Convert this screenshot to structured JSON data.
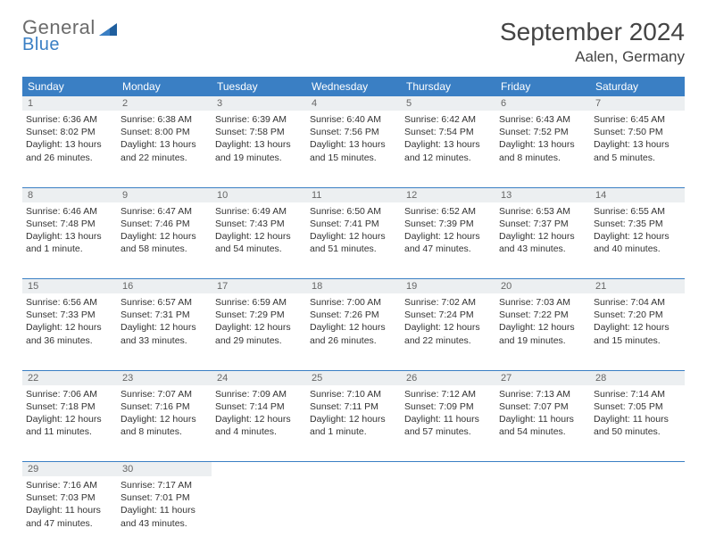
{
  "logo": {
    "general": "General",
    "blue": "Blue"
  },
  "title": "September 2024",
  "location": "Aalen, Germany",
  "header_bg": "#3a7fc4",
  "daynum_bg": "#eceff1",
  "weekdays": [
    "Sunday",
    "Monday",
    "Tuesday",
    "Wednesday",
    "Thursday",
    "Friday",
    "Saturday"
  ],
  "weeks": [
    [
      {
        "n": "1",
        "sr": "6:36 AM",
        "ss": "8:02 PM",
        "dl": "13 hours and 26 minutes."
      },
      {
        "n": "2",
        "sr": "6:38 AM",
        "ss": "8:00 PM",
        "dl": "13 hours and 22 minutes."
      },
      {
        "n": "3",
        "sr": "6:39 AM",
        "ss": "7:58 PM",
        "dl": "13 hours and 19 minutes."
      },
      {
        "n": "4",
        "sr": "6:40 AM",
        "ss": "7:56 PM",
        "dl": "13 hours and 15 minutes."
      },
      {
        "n": "5",
        "sr": "6:42 AM",
        "ss": "7:54 PM",
        "dl": "13 hours and 12 minutes."
      },
      {
        "n": "6",
        "sr": "6:43 AM",
        "ss": "7:52 PM",
        "dl": "13 hours and 8 minutes."
      },
      {
        "n": "7",
        "sr": "6:45 AM",
        "ss": "7:50 PM",
        "dl": "13 hours and 5 minutes."
      }
    ],
    [
      {
        "n": "8",
        "sr": "6:46 AM",
        "ss": "7:48 PM",
        "dl": "13 hours and 1 minute."
      },
      {
        "n": "9",
        "sr": "6:47 AM",
        "ss": "7:46 PM",
        "dl": "12 hours and 58 minutes."
      },
      {
        "n": "10",
        "sr": "6:49 AM",
        "ss": "7:43 PM",
        "dl": "12 hours and 54 minutes."
      },
      {
        "n": "11",
        "sr": "6:50 AM",
        "ss": "7:41 PM",
        "dl": "12 hours and 51 minutes."
      },
      {
        "n": "12",
        "sr": "6:52 AM",
        "ss": "7:39 PM",
        "dl": "12 hours and 47 minutes."
      },
      {
        "n": "13",
        "sr": "6:53 AM",
        "ss": "7:37 PM",
        "dl": "12 hours and 43 minutes."
      },
      {
        "n": "14",
        "sr": "6:55 AM",
        "ss": "7:35 PM",
        "dl": "12 hours and 40 minutes."
      }
    ],
    [
      {
        "n": "15",
        "sr": "6:56 AM",
        "ss": "7:33 PM",
        "dl": "12 hours and 36 minutes."
      },
      {
        "n": "16",
        "sr": "6:57 AM",
        "ss": "7:31 PM",
        "dl": "12 hours and 33 minutes."
      },
      {
        "n": "17",
        "sr": "6:59 AM",
        "ss": "7:29 PM",
        "dl": "12 hours and 29 minutes."
      },
      {
        "n": "18",
        "sr": "7:00 AM",
        "ss": "7:26 PM",
        "dl": "12 hours and 26 minutes."
      },
      {
        "n": "19",
        "sr": "7:02 AM",
        "ss": "7:24 PM",
        "dl": "12 hours and 22 minutes."
      },
      {
        "n": "20",
        "sr": "7:03 AM",
        "ss": "7:22 PM",
        "dl": "12 hours and 19 minutes."
      },
      {
        "n": "21",
        "sr": "7:04 AM",
        "ss": "7:20 PM",
        "dl": "12 hours and 15 minutes."
      }
    ],
    [
      {
        "n": "22",
        "sr": "7:06 AM",
        "ss": "7:18 PM",
        "dl": "12 hours and 11 minutes."
      },
      {
        "n": "23",
        "sr": "7:07 AM",
        "ss": "7:16 PM",
        "dl": "12 hours and 8 minutes."
      },
      {
        "n": "24",
        "sr": "7:09 AM",
        "ss": "7:14 PM",
        "dl": "12 hours and 4 minutes."
      },
      {
        "n": "25",
        "sr": "7:10 AM",
        "ss": "7:11 PM",
        "dl": "12 hours and 1 minute."
      },
      {
        "n": "26",
        "sr": "7:12 AM",
        "ss": "7:09 PM",
        "dl": "11 hours and 57 minutes."
      },
      {
        "n": "27",
        "sr": "7:13 AM",
        "ss": "7:07 PM",
        "dl": "11 hours and 54 minutes."
      },
      {
        "n": "28",
        "sr": "7:14 AM",
        "ss": "7:05 PM",
        "dl": "11 hours and 50 minutes."
      }
    ],
    [
      {
        "n": "29",
        "sr": "7:16 AM",
        "ss": "7:03 PM",
        "dl": "11 hours and 47 minutes."
      },
      {
        "n": "30",
        "sr": "7:17 AM",
        "ss": "7:01 PM",
        "dl": "11 hours and 43 minutes."
      },
      null,
      null,
      null,
      null,
      null
    ]
  ],
  "labels": {
    "sunrise": "Sunrise:",
    "sunset": "Sunset:",
    "daylight": "Daylight:"
  }
}
